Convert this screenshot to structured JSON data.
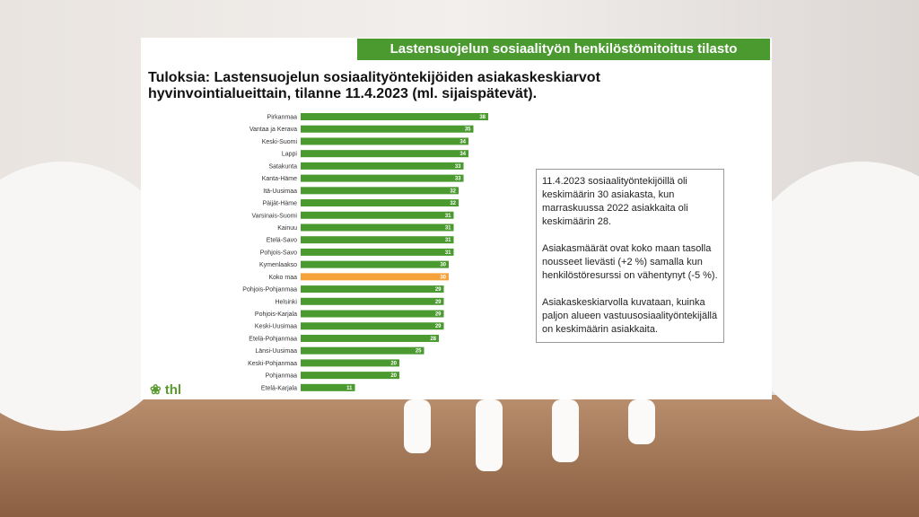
{
  "header": {
    "banner": "Lastensuojelun sosiaalityön henkilöstömitoitus tilasto",
    "logo": "thl"
  },
  "chart_data": {
    "type": "bar",
    "orientation": "horizontal",
    "title": "Tuloksia: Lastensuojelun sosiaalityöntekijöiden asiakaskeskiarvot hyvinvointialueittain, tilanne 11.4.2023 (ml. sijaispätevät).",
    "categories": [
      "Pirkanmaa",
      "Vantaa ja Kerava",
      "Keski-Suomi",
      "Lappi",
      "Satakunta",
      "Kanta-Häme",
      "Itä-Uusimaa",
      "Päijät-Häme",
      "Varsinais-Suomi",
      "Kainuu",
      "Etelä-Savo",
      "Pohjois-Savo",
      "Kymenlaakso",
      "Koko maa",
      "Pohjois-Pohjanmaa",
      "Helsinki",
      "Pohjois-Karjala",
      "Keski-Uusimaa",
      "Etelä-Pohjanmaa",
      "Länsi-Uusimaa",
      "Keski-Pohjanmaa",
      "Pohjanmaa",
      "Etelä-Karjala"
    ],
    "values": [
      38,
      35,
      34,
      34,
      33,
      33,
      32,
      32,
      31,
      31,
      31,
      31,
      30,
      30,
      29,
      29,
      29,
      29,
      28,
      25,
      20,
      20,
      11
    ],
    "colors": [
      "#4a9a2f",
      "#4a9a2f",
      "#4a9a2f",
      "#4a9a2f",
      "#4a9a2f",
      "#4a9a2f",
      "#4a9a2f",
      "#4a9a2f",
      "#4a9a2f",
      "#4a9a2f",
      "#4a9a2f",
      "#4a9a2f",
      "#4a9a2f",
      "#f5a23a",
      "#4a9a2f",
      "#4a9a2f",
      "#4a9a2f",
      "#4a9a2f",
      "#4a9a2f",
      "#4a9a2f",
      "#4a9a2f",
      "#4a9a2f",
      "#4a9a2f"
    ]
  },
  "note": [
    "11.4.2023 sosiaalityöntekijöillä oli keskimäärin 30 asiakasta, kun marraskuussa 2022 asiakkaita oli keskimäärin 28.",
    "Asiakasmäärät ovat koko maan tasolla nousseet lievästi (+2 %) samalla kun henkilöstöresurssi on vähentynyt (-5 %).",
    "Asiakaskeskiarvolla kuvataan, kuinka paljon alueen vastuusosiaalityön­tekijällä on keskimäärin asiakkaita."
  ]
}
